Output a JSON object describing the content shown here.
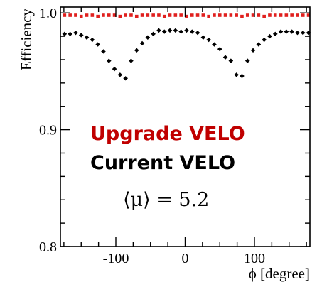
{
  "chart_data": {
    "type": "scatter",
    "xlabel": "ϕ [degree]",
    "ylabel": "Efficiency",
    "xlim": [
      -180,
      180
    ],
    "ylim": [
      0.8,
      1.005
    ],
    "xticks": [
      -100,
      0,
      100
    ],
    "yticks": [
      0.8,
      0.9,
      1.0
    ],
    "xtick_labels": [
      "-100",
      "0",
      "100"
    ],
    "ytick_labels": [
      "0.8",
      "0.9",
      "1.0"
    ],
    "annotations": {
      "upgrade": "Upgrade VELO",
      "current": "Current VELO",
      "mu": "⟨μ⟩ = 5.2"
    },
    "series": [
      {
        "name": "Upgrade VELO",
        "color": "#e0201e",
        "marker": "square",
        "x": [
          -174,
          -166,
          -158,
          -150,
          -142,
          -134,
          -126,
          -118,
          -110,
          -102,
          -94,
          -86,
          -78,
          -70,
          -62,
          -54,
          -46,
          -38,
          -30,
          -22,
          -14,
          -6,
          2,
          10,
          18,
          26,
          34,
          42,
          50,
          58,
          66,
          74,
          82,
          90,
          98,
          106,
          114,
          122,
          130,
          138,
          146,
          154,
          162,
          170,
          178
        ],
        "y": [
          0.998,
          0.998,
          0.998,
          0.997,
          0.998,
          0.998,
          0.997,
          0.998,
          0.998,
          0.998,
          0.997,
          0.998,
          0.998,
          0.997,
          0.998,
          0.998,
          0.998,
          0.998,
          0.997,
          0.998,
          0.998,
          0.998,
          0.997,
          0.998,
          0.998,
          0.998,
          0.997,
          0.998,
          0.998,
          0.998,
          0.998,
          0.998,
          0.997,
          0.998,
          0.998,
          0.998,
          0.997,
          0.998,
          0.998,
          0.998,
          0.998,
          0.998,
          0.998,
          0.998,
          0.998
        ]
      },
      {
        "name": "Current VELO",
        "color": "#000000",
        "marker": "diamond",
        "x": [
          -174,
          -166,
          -158,
          -150,
          -142,
          -134,
          -126,
          -118,
          -110,
          -102,
          -94,
          -86,
          -78,
          -70,
          -62,
          -54,
          -46,
          -38,
          -30,
          -22,
          -14,
          -6,
          2,
          10,
          18,
          26,
          34,
          42,
          50,
          58,
          66,
          74,
          82,
          90,
          98,
          106,
          114,
          122,
          130,
          138,
          146,
          154,
          162,
          170,
          178
        ],
        "y": [
          0.982,
          0.982,
          0.983,
          0.981,
          0.979,
          0.977,
          0.973,
          0.967,
          0.959,
          0.952,
          0.947,
          0.944,
          0.959,
          0.968,
          0.974,
          0.979,
          0.982,
          0.985,
          0.984,
          0.985,
          0.985,
          0.984,
          0.985,
          0.984,
          0.983,
          0.979,
          0.977,
          0.973,
          0.969,
          0.962,
          0.959,
          0.947,
          0.946,
          0.959,
          0.968,
          0.973,
          0.977,
          0.98,
          0.982,
          0.984,
          0.984,
          0.984,
          0.983,
          0.983,
          0.983
        ]
      }
    ]
  }
}
